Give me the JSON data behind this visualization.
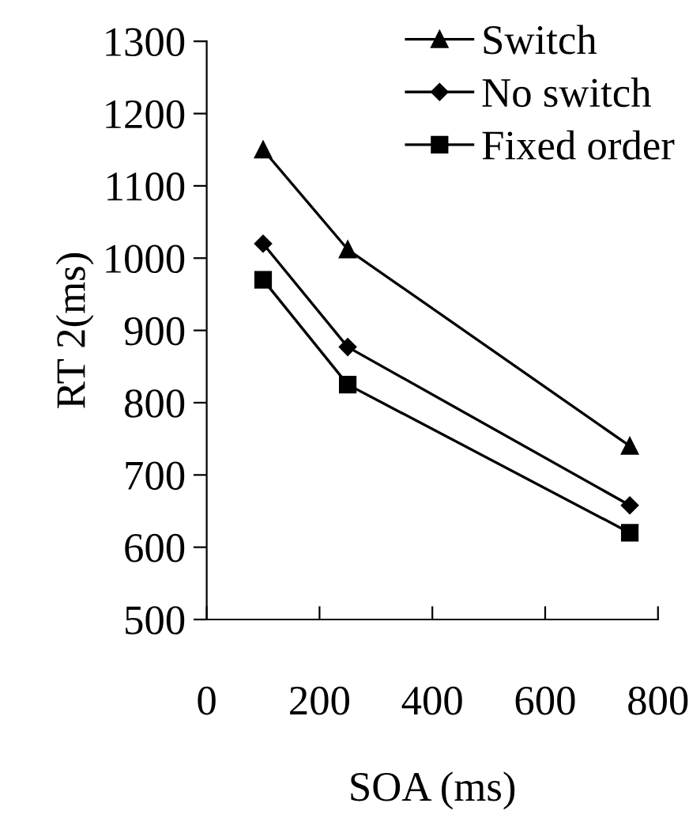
{
  "chart_data": {
    "type": "line",
    "xlabel": "SOA (ms)",
    "ylabel": "RT 2(ms)",
    "x": [
      100,
      250,
      750
    ],
    "series": [
      {
        "name": "Switch",
        "color": "#000000",
        "marker": "triangle",
        "values": [
          1150,
          1012,
          740
        ]
      },
      {
        "name": "No switch",
        "color": "#000000",
        "marker": "diamond",
        "values": [
          1020,
          877,
          658
        ]
      },
      {
        "name": "Fixed order",
        "color": "#000000",
        "marker": "square",
        "values": [
          970,
          825,
          620
        ]
      }
    ],
    "xlim": [
      0,
      800
    ],
    "xticks": [
      0,
      200,
      400,
      600,
      800
    ],
    "ylim": [
      500,
      1300
    ],
    "yticks": [
      500,
      600,
      700,
      800,
      900,
      1000,
      1100,
      1200,
      1300
    ],
    "grid": false,
    "legend": "top right",
    "line_style": "solid"
  }
}
